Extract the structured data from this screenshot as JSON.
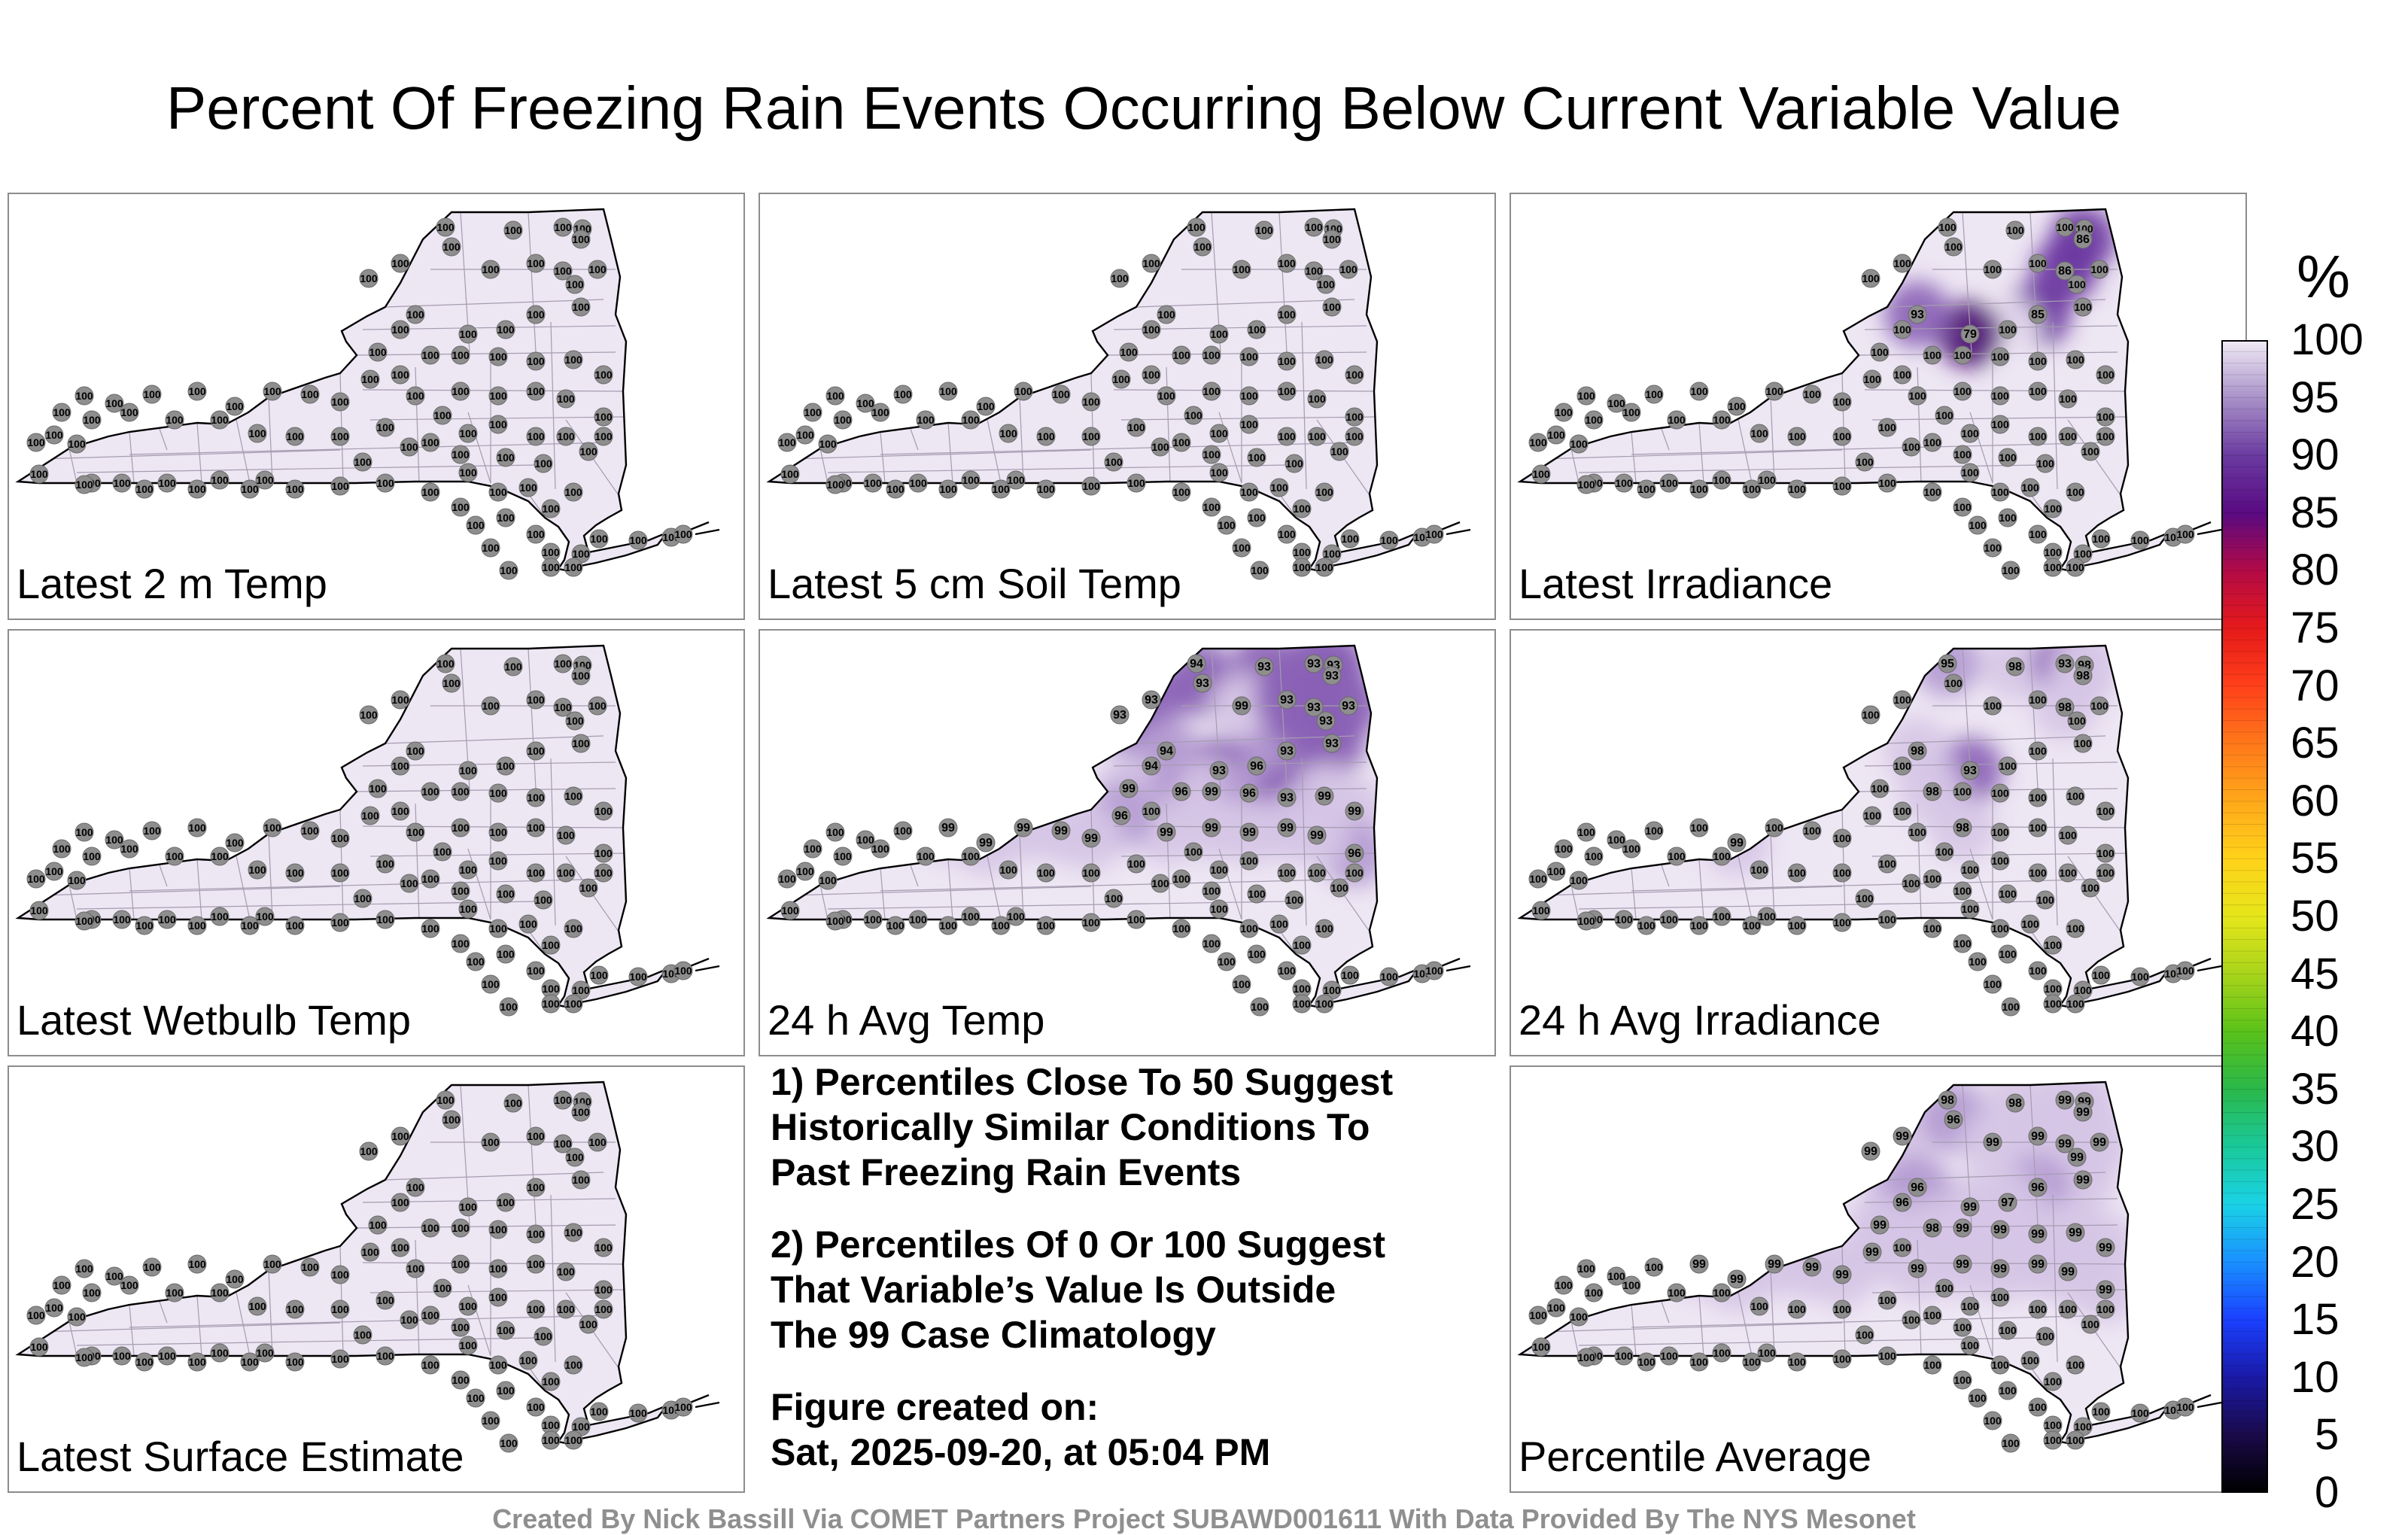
{
  "title": "Percent Of Freezing Rain Events Occurring Below Current Variable Value",
  "panels": [
    {
      "id": "p1",
      "label": "Latest 2 m Temp",
      "col": 0,
      "row": 0,
      "values": {}
    },
    {
      "id": "p2",
      "label": "Latest 5 cm Soil Temp",
      "col": 1,
      "row": 0,
      "values": {}
    },
    {
      "id": "p3",
      "label": "Latest Irradiance",
      "col": 2,
      "row": 0,
      "values": {
        "4": "86",
        "10": "86",
        "14": "85",
        "15": "100",
        "16": "79",
        "17": "93"
      }
    },
    {
      "id": "p4",
      "label": "Latest Wetbulb Temp",
      "col": 0,
      "row": 1,
      "values": {}
    },
    {
      "id": "p5",
      "label": "24 h Avg Temp",
      "col": 1,
      "row": 1,
      "values": {
        "0": "94",
        "1": "93",
        "2": "93",
        "3": "93",
        "4": "93",
        "5": "93",
        "6": "93",
        "7": "93",
        "8": "99",
        "9": "93",
        "10": "93",
        "11": "93",
        "12": "93",
        "13": "93",
        "14": "93",
        "15": "96",
        "16": "93",
        "17": "94",
        "18": "94",
        "19": "99",
        "20": "96",
        "21": "99",
        "22": "96",
        "23": "93",
        "24": "99",
        "25": "99",
        "26": "96",
        "27": "99",
        "28": "99",
        "29": "99",
        "30": "99",
        "31": "99",
        "32": "96",
        "33": "99",
        "34": "99",
        "35": "99",
        "36": "99",
        "37": "99"
      }
    },
    {
      "id": "p6",
      "label": "24 h Avg Irradiance",
      "col": 2,
      "row": 1,
      "values": {
        "0": "95",
        "1": "98",
        "2": "93",
        "3": "98",
        "4": "98",
        "10": "98",
        "16": "93",
        "17": "98",
        "20": "98",
        "30": "98",
        "36": "99"
      }
    },
    {
      "id": "p7",
      "label": "Latest Surface Estimate",
      "col": 0,
      "row": 2,
      "values": {}
    },
    {
      "id": "p8",
      "label": "Percentile Average",
      "col": 2,
      "row": 2,
      "values": {
        "0": "98",
        "1": "98",
        "2": "99",
        "3": "99",
        "4": "99",
        "5": "99",
        "6": "99",
        "7": "96",
        "8": "99",
        "9": "99",
        "10": "99",
        "11": "99",
        "12": "99",
        "13": "99",
        "14": "96",
        "15": "97",
        "16": "99",
        "17": "96",
        "18": "96",
        "19": "99",
        "20": "98",
        "21": "99",
        "22": "99",
        "23": "99",
        "24": "99",
        "25": "99",
        "26": "99",
        "27": "99",
        "28": "99",
        "29": "99",
        "30": "99",
        "31": "99",
        "32": "99",
        "33": "99",
        "34": "99",
        "35": "99",
        "36": "99",
        "37": "99"
      }
    }
  ],
  "notes": {
    "note1": [
      "1) Percentiles Close To 50 Suggest",
      "Historically Similar Conditions To",
      "Past Freezing Rain Events"
    ],
    "note2": [
      "2) Percentiles Of 0 Or 100 Suggest",
      "That Variable’s Value Is Outside",
      "The 99 Case Climatology"
    ],
    "created": [
      "Figure created on:",
      "Sat, 2025-09-20, at 05:04 PM"
    ]
  },
  "colorbar": {
    "unit": "%",
    "tick_labels": [
      "100",
      "95",
      "90",
      "85",
      "80",
      "75",
      "70",
      "65",
      "60",
      "55",
      "50",
      "45",
      "40",
      "35",
      "30",
      "25",
      "20",
      "15",
      "10",
      "5",
      "0"
    ],
    "colors": [
      "#000000",
      "#1a0a4a",
      "#1a1aa8",
      "#1a40ff",
      "#1a90ff",
      "#1ad2e6",
      "#1ac99a",
      "#2ab84a",
      "#5ac21a",
      "#a8d41a",
      "#e6e61a",
      "#ffd21a",
      "#ffa81a",
      "#ff781a",
      "#ff401a",
      "#e61a1a",
      "#b40a46",
      "#5a0a82",
      "#6a3aa0",
      "#a890c8",
      "#f0ebf5"
    ]
  },
  "default_station_value": "100",
  "credit": "Created By Nick Bassill Via COMET Partners Project SUBAWD001611 With Data Provided By The NYS Mesonet"
}
